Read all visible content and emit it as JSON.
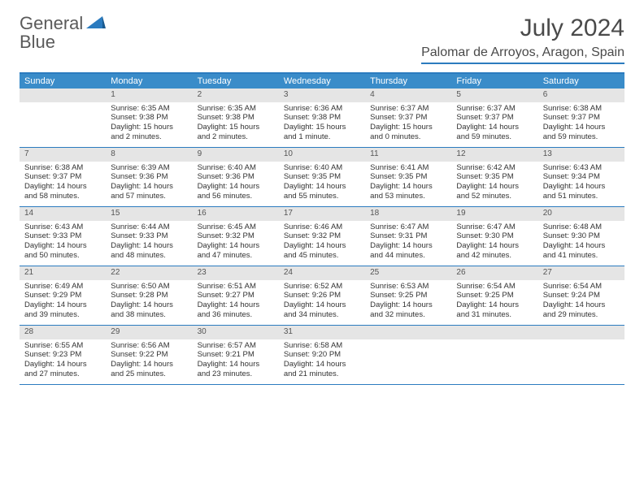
{
  "brand": {
    "word1": "General",
    "word2": "Blue"
  },
  "colors": {
    "brand_gray": "#5a5a5a",
    "brand_blue": "#2b7bbf",
    "header_bg": "#3a8cc9",
    "daynum_bg": "#e5e5e5",
    "text": "#333333",
    "rule": "#2b7bbf"
  },
  "title": {
    "month": "July 2024",
    "location": "Palomar de Arroyos, Aragon, Spain"
  },
  "weekdays": [
    "Sunday",
    "Monday",
    "Tuesday",
    "Wednesday",
    "Thursday",
    "Friday",
    "Saturday"
  ],
  "weeks": [
    [
      null,
      {
        "n": "1",
        "sr": "6:35 AM",
        "ss": "9:38 PM",
        "dl": "15 hours and 2 minutes."
      },
      {
        "n": "2",
        "sr": "6:35 AM",
        "ss": "9:38 PM",
        "dl": "15 hours and 2 minutes."
      },
      {
        "n": "3",
        "sr": "6:36 AM",
        "ss": "9:38 PM",
        "dl": "15 hours and 1 minute."
      },
      {
        "n": "4",
        "sr": "6:37 AM",
        "ss": "9:37 PM",
        "dl": "15 hours and 0 minutes."
      },
      {
        "n": "5",
        "sr": "6:37 AM",
        "ss": "9:37 PM",
        "dl": "14 hours and 59 minutes."
      },
      {
        "n": "6",
        "sr": "6:38 AM",
        "ss": "9:37 PM",
        "dl": "14 hours and 59 minutes."
      }
    ],
    [
      {
        "n": "7",
        "sr": "6:38 AM",
        "ss": "9:37 PM",
        "dl": "14 hours and 58 minutes."
      },
      {
        "n": "8",
        "sr": "6:39 AM",
        "ss": "9:36 PM",
        "dl": "14 hours and 57 minutes."
      },
      {
        "n": "9",
        "sr": "6:40 AM",
        "ss": "9:36 PM",
        "dl": "14 hours and 56 minutes."
      },
      {
        "n": "10",
        "sr": "6:40 AM",
        "ss": "9:35 PM",
        "dl": "14 hours and 55 minutes."
      },
      {
        "n": "11",
        "sr": "6:41 AM",
        "ss": "9:35 PM",
        "dl": "14 hours and 53 minutes."
      },
      {
        "n": "12",
        "sr": "6:42 AM",
        "ss": "9:35 PM",
        "dl": "14 hours and 52 minutes."
      },
      {
        "n": "13",
        "sr": "6:43 AM",
        "ss": "9:34 PM",
        "dl": "14 hours and 51 minutes."
      }
    ],
    [
      {
        "n": "14",
        "sr": "6:43 AM",
        "ss": "9:33 PM",
        "dl": "14 hours and 50 minutes."
      },
      {
        "n": "15",
        "sr": "6:44 AM",
        "ss": "9:33 PM",
        "dl": "14 hours and 48 minutes."
      },
      {
        "n": "16",
        "sr": "6:45 AM",
        "ss": "9:32 PM",
        "dl": "14 hours and 47 minutes."
      },
      {
        "n": "17",
        "sr": "6:46 AM",
        "ss": "9:32 PM",
        "dl": "14 hours and 45 minutes."
      },
      {
        "n": "18",
        "sr": "6:47 AM",
        "ss": "9:31 PM",
        "dl": "14 hours and 44 minutes."
      },
      {
        "n": "19",
        "sr": "6:47 AM",
        "ss": "9:30 PM",
        "dl": "14 hours and 42 minutes."
      },
      {
        "n": "20",
        "sr": "6:48 AM",
        "ss": "9:30 PM",
        "dl": "14 hours and 41 minutes."
      }
    ],
    [
      {
        "n": "21",
        "sr": "6:49 AM",
        "ss": "9:29 PM",
        "dl": "14 hours and 39 minutes."
      },
      {
        "n": "22",
        "sr": "6:50 AM",
        "ss": "9:28 PM",
        "dl": "14 hours and 38 minutes."
      },
      {
        "n": "23",
        "sr": "6:51 AM",
        "ss": "9:27 PM",
        "dl": "14 hours and 36 minutes."
      },
      {
        "n": "24",
        "sr": "6:52 AM",
        "ss": "9:26 PM",
        "dl": "14 hours and 34 minutes."
      },
      {
        "n": "25",
        "sr": "6:53 AM",
        "ss": "9:25 PM",
        "dl": "14 hours and 32 minutes."
      },
      {
        "n": "26",
        "sr": "6:54 AM",
        "ss": "9:25 PM",
        "dl": "14 hours and 31 minutes."
      },
      {
        "n": "27",
        "sr": "6:54 AM",
        "ss": "9:24 PM",
        "dl": "14 hours and 29 minutes."
      }
    ],
    [
      {
        "n": "28",
        "sr": "6:55 AM",
        "ss": "9:23 PM",
        "dl": "14 hours and 27 minutes."
      },
      {
        "n": "29",
        "sr": "6:56 AM",
        "ss": "9:22 PM",
        "dl": "14 hours and 25 minutes."
      },
      {
        "n": "30",
        "sr": "6:57 AM",
        "ss": "9:21 PM",
        "dl": "14 hours and 23 minutes."
      },
      {
        "n": "31",
        "sr": "6:58 AM",
        "ss": "9:20 PM",
        "dl": "14 hours and 21 minutes."
      },
      null,
      null,
      null
    ]
  ],
  "labels": {
    "sunrise": "Sunrise:",
    "sunset": "Sunset:",
    "daylight": "Daylight:"
  }
}
